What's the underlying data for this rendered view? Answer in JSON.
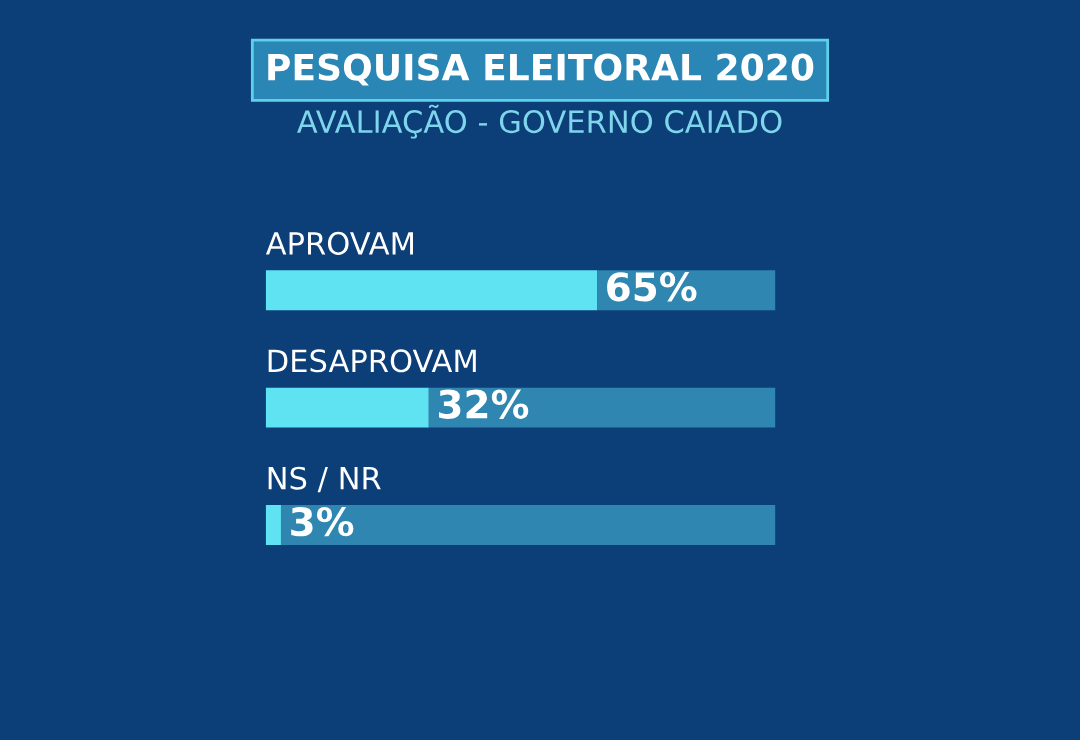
{
  "chart_data": {
    "type": "bar",
    "orientation": "horizontal",
    "stacked": true,
    "title": "PESQUISA ELEITORAL 2020",
    "subtitle": "AVALIAÇÃO - GOVERNO CAIADO",
    "categories": [
      "APROVAM",
      "DESAPROVAM",
      "NS / NR"
    ],
    "series": [
      {
        "color": "#5fe3f2",
        "values": [
          65,
          32,
          3
        ],
        "value_labels": [
          "65%",
          "32%",
          "3%"
        ]
      },
      {
        "color": "#2f86b0",
        "values": [
          35,
          68,
          97
        ]
      }
    ],
    "xlim": [
      0,
      100
    ]
  }
}
